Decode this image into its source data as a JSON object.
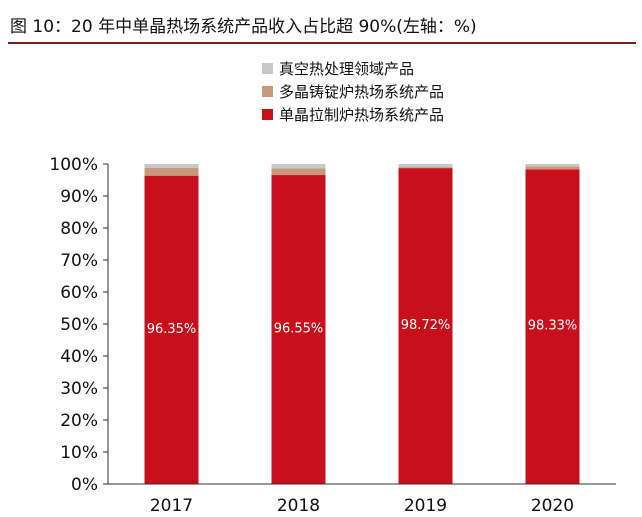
{
  "chart_data": {
    "type": "bar",
    "stacked": true,
    "title": "图 10：20 年中单晶热场系统产品收入占比超 90%(左轴：%)",
    "categories": [
      "2017",
      "2018",
      "2019",
      "2020"
    ],
    "series": [
      {
        "name": "单晶拉制炉热场系统产品",
        "values": [
          96.35,
          96.55,
          98.72,
          98.33
        ],
        "labels": [
          "96.35%",
          "96.55%",
          "98.72%",
          "98.33%"
        ],
        "color": "#c8101d"
      },
      {
        "name": "多晶铸锭炉热场系统产品",
        "values": [
          2.4,
          2.1,
          0.3,
          0.9
        ],
        "color": "#c9987a"
      },
      {
        "name": "真空热处理领域产品",
        "values": [
          1.25,
          1.35,
          0.98,
          0.77
        ],
        "color": "#c8c8c8"
      }
    ],
    "legend_order": [
      2,
      1,
      0
    ],
    "legend_position": "top-center",
    "ylim": [
      0,
      100
    ],
    "yticks": [
      "0%",
      "10%",
      "20%",
      "30%",
      "40%",
      "50%",
      "60%",
      "70%",
      "80%",
      "90%",
      "100%"
    ],
    "grid": false
  }
}
